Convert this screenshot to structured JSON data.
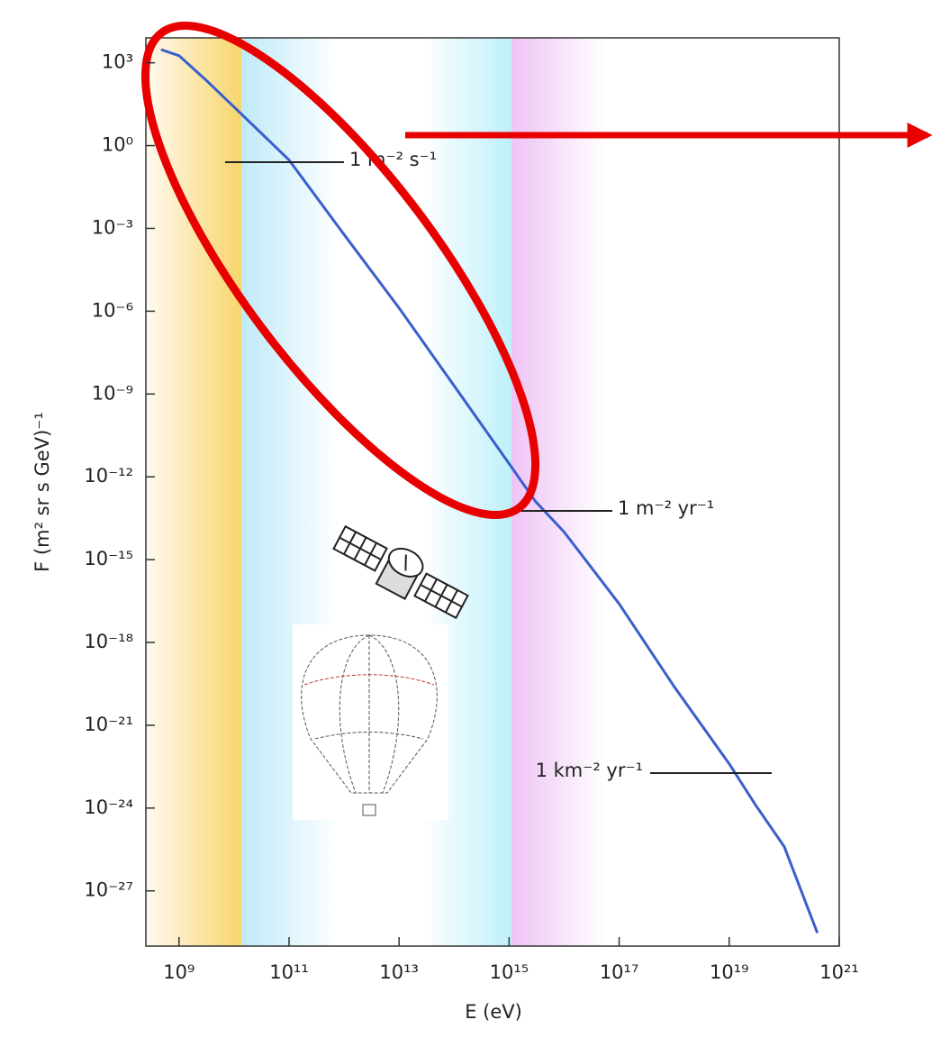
{
  "chart_data": {
    "type": "line",
    "x_label": "E (eV)",
    "y_label": "F (m² sr s GeV)⁻¹",
    "x": [
      470000000.0,
      1000000000.0,
      3000000000.0,
      10000000000.0,
      100000000000.0,
      1000000000000.0,
      10000000000000.0,
      100000000000000.0,
      1000000000000000.0,
      3000000000000000.0,
      1e+16,
      1e+17,
      1e+18,
      1e+19,
      3e+19,
      1e+20,
      4e+20
    ],
    "values": [
      3000,
      1800,
      250,
      25,
      0.3,
      0.0006,
      1.3e-06,
      2e-09,
      3e-12,
      1.3e-13,
      1e-14,
      2.5e-17,
      2.5e-20,
      4e-23,
      1.3e-24,
      4e-26,
      3e-29
    ],
    "color": "#3a5fcd",
    "xlog": true,
    "ylog": true,
    "grid": false,
    "xlim": [
      250000000.0,
      1e+21
    ],
    "ylim": [
      1e-29,
      8000
    ],
    "xticks": [
      {
        "value": 1000000000.0,
        "label": "10⁹"
      },
      {
        "value": 100000000000.0,
        "label": "10¹¹"
      },
      {
        "value": 10000000000000.0,
        "label": "10¹³"
      },
      {
        "value": 1000000000000000.0,
        "label": "10¹⁵"
      },
      {
        "value": 1e+17,
        "label": "10¹⁷"
      },
      {
        "value": 1e+19,
        "label": "10¹⁹"
      },
      {
        "value": 1e+21,
        "label": "10²¹"
      }
    ],
    "yticks": [
      {
        "value": 1000,
        "label": "10³"
      },
      {
        "value": 1,
        "label": "10⁰"
      },
      {
        "value": 0.001,
        "label": "10⁻³"
      },
      {
        "value": 1e-06,
        "label": "10⁻⁶"
      },
      {
        "value": 1e-09,
        "label": "10⁻⁹"
      },
      {
        "value": 1e-12,
        "label": "10⁻¹²"
      },
      {
        "value": 1e-15,
        "label": "10⁻¹⁵"
      },
      {
        "value": 1e-18,
        "label": "10⁻¹⁸"
      },
      {
        "value": 1e-21,
        "label": "10⁻²¹"
      },
      {
        "value": 1e-24,
        "label": "10⁻²⁴"
      },
      {
        "value": 1e-27,
        "label": "10⁻²⁷"
      }
    ],
    "annotations": [
      "1 m⁻² s⁻¹",
      "1 m⁻² yr⁻¹",
      "1 km⁻² yr⁻¹"
    ]
  }
}
